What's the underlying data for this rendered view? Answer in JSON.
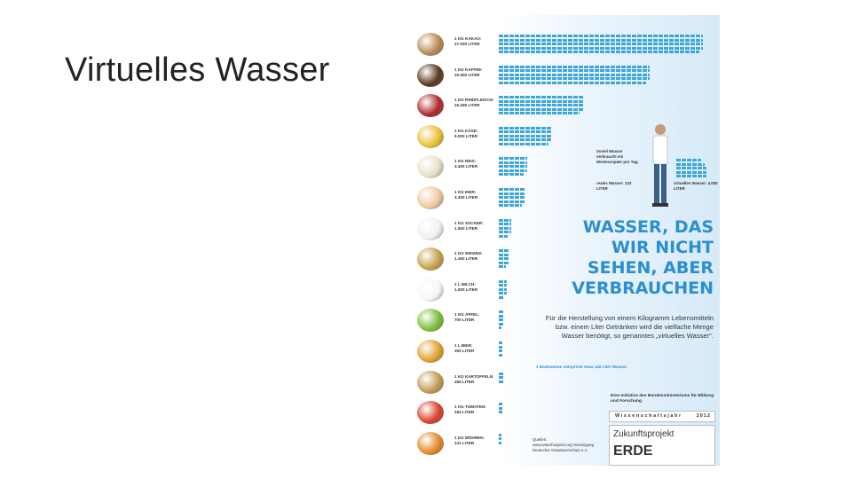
{
  "slide": {
    "title": "Virtuelles Wasser"
  },
  "poster": {
    "foods": [
      {
        "name": "coffee",
        "label": "1 KG KAKAO:",
        "amount": "27.000 LITER",
        "bars": 3,
        "width": 230,
        "color": "#b98a55"
      },
      {
        "name": "coffee-beans",
        "label": "1 KG KAFFEE:",
        "amount": "20.000 LITER",
        "bars": 3,
        "width": 170,
        "color": "#5a3b22"
      },
      {
        "name": "beef",
        "label": "1 KG RINDFLEISCH:",
        "amount": "15.455 LITER",
        "bars": 3,
        "width": 95,
        "color": "#b02c2c"
      },
      {
        "name": "cheese",
        "label": "1 KG KÄSE:",
        "amount": "5.000 LITER",
        "bars": 3,
        "width": 60,
        "color": "#e8c23a"
      },
      {
        "name": "rice",
        "label": "1 KG REIS:",
        "amount": "3.400 LITER",
        "bars": 3,
        "width": 32,
        "color": "#e9e1c8"
      },
      {
        "name": "eggs",
        "label": "1 KG EIER:",
        "amount": "3.300 LITER",
        "bars": 3,
        "width": 30,
        "color": "#efc9a0"
      },
      {
        "name": "sugar",
        "label": "1 KG ZUCKER:",
        "amount": "1.500 LITER",
        "bars": 3,
        "width": 14,
        "color": "#f2f2f2"
      },
      {
        "name": "wheat",
        "label": "1 KG WEIZEN:",
        "amount": "1.300 LITER",
        "bars": 3,
        "width": 12,
        "color": "#c8a04c"
      },
      {
        "name": "milk",
        "label": "1 L MILCH:",
        "amount": "1.000 LITER",
        "bars": 3,
        "width": 9,
        "color": "#f7f7f7"
      },
      {
        "name": "apple",
        "label": "1 KG ÄPFEL:",
        "amount": "700 LITER",
        "bars": 3,
        "width": 6,
        "color": "#7cbf3b"
      },
      {
        "name": "beer",
        "label": "1 L BIER:",
        "amount": "300 LITER",
        "bars": 2,
        "width": 4,
        "color": "#e0a32e"
      },
      {
        "name": "potatoes",
        "label": "1 KG KARTOFFELN:",
        "amount": "255 LITER",
        "bars": 1,
        "width": 5,
        "color": "#c49b57"
      },
      {
        "name": "tomatoes",
        "label": "1 KG TOMATEN:",
        "amount": "184 LITER",
        "bars": 1,
        "width": 4,
        "color": "#d9442b"
      },
      {
        "name": "carrots",
        "label": "1 KG MÖHREN:",
        "amount": "131 LITER",
        "bars": 1,
        "width": 3,
        "color": "#e58a2c"
      }
    ],
    "person_note_1": "Soviel Wasser verbraucht ein Westeuropäer pro Tag:",
    "person_note_2": "reales Wasser: 123 LITER",
    "person_note_3": "virtuelles Wasser: 4.000 LITER",
    "headline": "WASSER, DAS WIR NICHT SEHEN, ABER VERBRAUCHEN",
    "body": "Für die Herstellung von einem Kilogramm Lebensmitteln bzw. einem Liter Getränken wird die vielfache Menge Wasser benötigt, so genanntes „virtuelles Wasser\".",
    "legend": "1 Badewanne entspricht etwa 140 Liter Wasser.",
    "initiative": "Eine Initiative des Bundesministeriums für Bildung und Forschung",
    "wj_label": "Wissenschaftsjahr",
    "wj_year": "2012",
    "zp_title": "Zukunftsprojekt",
    "zp_sub": "ERDE",
    "sources_title": "Quellen:",
    "sources": "www.waterfootprint.org Vereinigung Deutscher Gewässerschutz e.V."
  }
}
